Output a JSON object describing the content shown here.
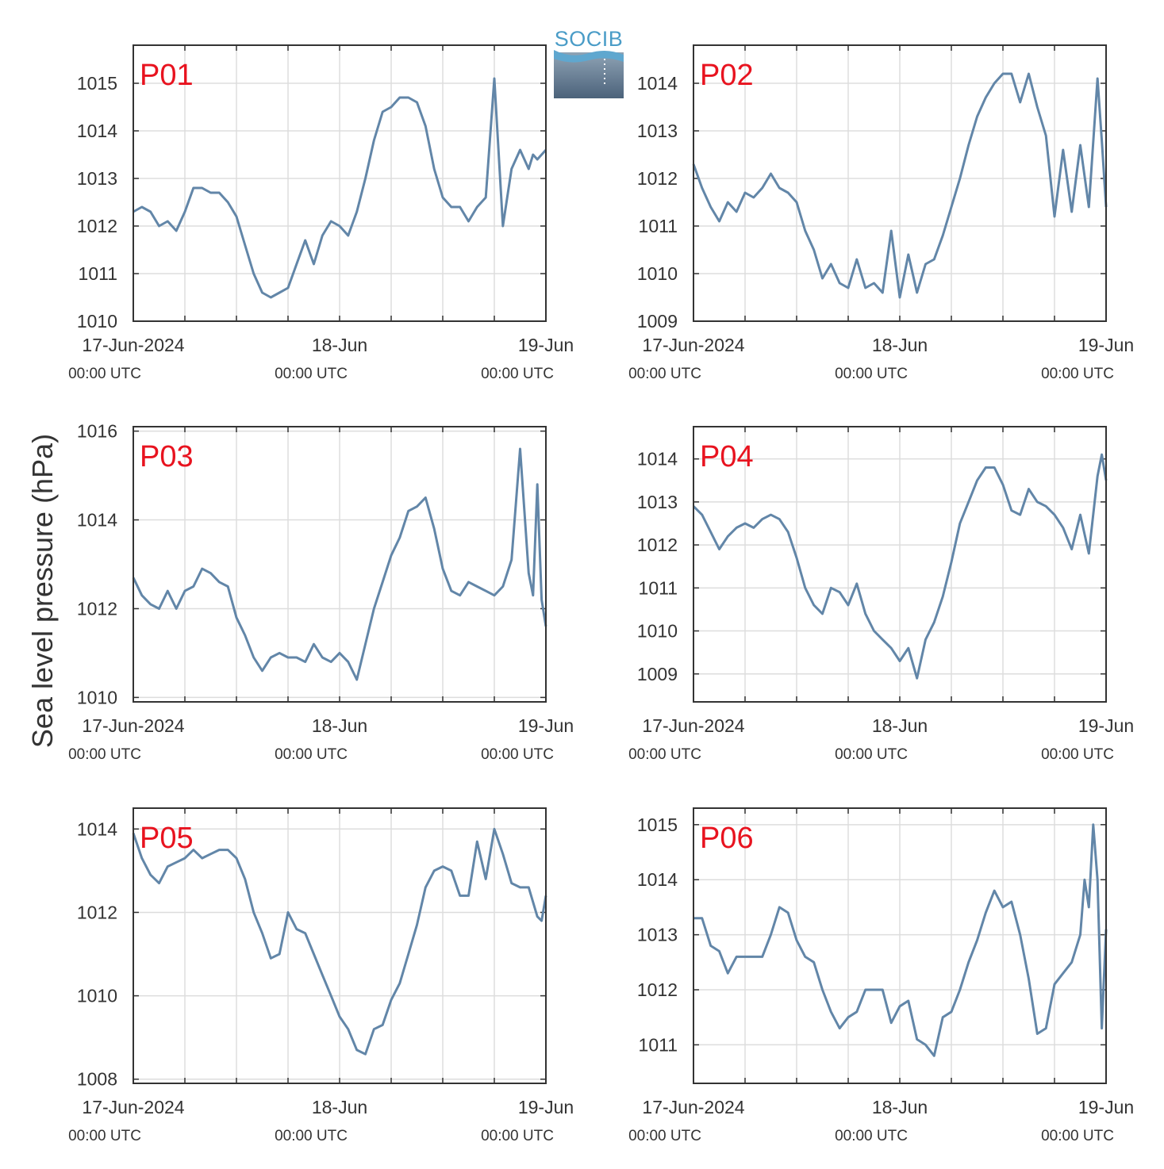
{
  "figure": {
    "ylabel": "Sea level pressure (hPa)",
    "logo_text": "SOCIB",
    "x_tick_labels": [
      "17-Jun-2024",
      "18-Jun",
      "19-Jun"
    ],
    "x_tick_sublabels": [
      "00:00 UTC",
      "00:00 UTC",
      "00:00 UTC"
    ]
  },
  "colors": {
    "line": "#6286a8",
    "panel_label": "#e8131f",
    "grid": "#dddddd",
    "axes": "#333333"
  },
  "chart_data": [
    {
      "type": "line",
      "panel_label": "P01",
      "xlabel": "",
      "ylabel": "",
      "xlim": [
        0,
        48
      ],
      "ylim": [
        1010,
        1015.8
      ],
      "yticks": [
        1010,
        1011,
        1012,
        1013,
        1014,
        1015
      ],
      "x_gridlines_hours": [
        6,
        12,
        18,
        24,
        30,
        36,
        42
      ],
      "x": [
        0,
        1,
        2,
        3,
        4,
        5,
        6,
        7,
        8,
        9,
        10,
        11,
        12,
        13,
        14,
        15,
        16,
        17,
        18,
        19,
        20,
        21,
        22,
        23,
        24,
        25,
        26,
        27,
        28,
        29,
        30,
        31,
        32,
        33,
        34,
        35,
        36,
        37,
        38,
        39,
        40,
        41,
        42,
        43,
        44,
        45,
        45.5,
        46,
        46.5,
        47,
        47.5,
        48
      ],
      "y": [
        1012.3,
        1012.4,
        1012.3,
        1012.0,
        1012.1,
        1011.9,
        1012.3,
        1012.8,
        1012.8,
        1012.7,
        1012.7,
        1012.5,
        1012.2,
        1011.6,
        1011.0,
        1010.6,
        1010.5,
        1010.6,
        1010.7,
        1011.2,
        1011.7,
        1011.2,
        1011.8,
        1012.1,
        1012.0,
        1011.8,
        1012.3,
        1013.0,
        1013.8,
        1014.4,
        1014.5,
        1014.7,
        1014.7,
        1014.6,
        1014.1,
        1013.2,
        1012.6,
        1012.4,
        1012.4,
        1012.1,
        1012.4,
        1012.6,
        1015.1,
        1012.0,
        1013.2,
        1013.6,
        1013.4,
        1013.2,
        1013.5,
        1013.4,
        1013.5,
        1013.6
      ]
    },
    {
      "type": "line",
      "panel_label": "P02",
      "xlabel": "",
      "ylabel": "",
      "xlim": [
        0,
        48
      ],
      "ylim": [
        1009,
        1014.8
      ],
      "yticks": [
        1009,
        1010,
        1011,
        1012,
        1013,
        1014
      ],
      "x_gridlines_hours": [
        6,
        12,
        18,
        24,
        30,
        36,
        42
      ],
      "x": [
        0,
        1,
        2,
        3,
        4,
        5,
        6,
        7,
        8,
        9,
        10,
        11,
        12,
        13,
        14,
        15,
        16,
        17,
        18,
        19,
        20,
        21,
        22,
        23,
        24,
        25,
        26,
        27,
        28,
        29,
        30,
        31,
        32,
        33,
        34,
        35,
        36,
        37,
        38,
        39,
        40,
        41,
        42,
        43,
        44,
        45,
        46,
        47,
        47.5,
        48
      ],
      "y": [
        1012.3,
        1011.8,
        1011.4,
        1011.1,
        1011.5,
        1011.3,
        1011.7,
        1011.6,
        1011.8,
        1012.1,
        1011.8,
        1011.7,
        1011.5,
        1010.9,
        1010.5,
        1009.9,
        1010.2,
        1009.8,
        1009.7,
        1010.3,
        1009.7,
        1009.8,
        1009.6,
        1010.9,
        1009.5,
        1010.4,
        1009.6,
        1010.2,
        1010.3,
        1010.8,
        1011.4,
        1012.0,
        1012.7,
        1013.3,
        1013.7,
        1014.0,
        1014.2,
        1014.2,
        1013.6,
        1014.2,
        1013.5,
        1012.9,
        1011.2,
        1012.6,
        1011.3,
        1012.7,
        1011.4,
        1014.1,
        1012.8,
        1011.4
      ]
    },
    {
      "type": "line",
      "panel_label": "P03",
      "xlabel": "",
      "ylabel": "",
      "xlim": [
        0,
        48
      ],
      "ylim": [
        1009.9,
        1016.1
      ],
      "yticks": [
        1010,
        1012,
        1014,
        1016
      ],
      "x_gridlines_hours": [
        6,
        12,
        18,
        24,
        30,
        36,
        42
      ],
      "x": [
        0,
        1,
        2,
        3,
        4,
        5,
        6,
        7,
        8,
        9,
        10,
        11,
        12,
        13,
        14,
        15,
        16,
        17,
        18,
        19,
        20,
        21,
        22,
        23,
        24,
        25,
        26,
        27,
        28,
        29,
        30,
        31,
        32,
        33,
        34,
        35,
        36,
        37,
        38,
        39,
        40,
        41,
        42,
        43,
        44,
        45,
        45.5,
        46,
        46.5,
        47,
        47.5,
        48
      ],
      "y": [
        1012.7,
        1012.3,
        1012.1,
        1012.0,
        1012.4,
        1012.0,
        1012.4,
        1012.5,
        1012.9,
        1012.8,
        1012.6,
        1012.5,
        1011.8,
        1011.4,
        1010.9,
        1010.6,
        1010.9,
        1011.0,
        1010.9,
        1010.9,
        1010.8,
        1011.2,
        1010.9,
        1010.8,
        1011.0,
        1010.8,
        1010.4,
        1011.2,
        1012.0,
        1012.6,
        1013.2,
        1013.6,
        1014.2,
        1014.3,
        1014.5,
        1013.8,
        1012.9,
        1012.4,
        1012.3,
        1012.6,
        1012.5,
        1012.4,
        1012.3,
        1012.5,
        1013.1,
        1015.6,
        1014.2,
        1012.8,
        1012.3,
        1014.8,
        1012.2,
        1011.6
      ]
    },
    {
      "type": "line",
      "panel_label": "P04",
      "xlabel": "",
      "ylabel": "",
      "xlim": [
        0,
        48
      ],
      "ylim": [
        1008.35,
        1014.75
      ],
      "yticks": [
        1009,
        1010,
        1011,
        1012,
        1013,
        1014
      ],
      "x_gridlines_hours": [
        6,
        12,
        18,
        24,
        30,
        36,
        42
      ],
      "x": [
        0,
        1,
        2,
        3,
        4,
        5,
        6,
        7,
        8,
        9,
        10,
        11,
        12,
        13,
        14,
        15,
        16,
        17,
        18,
        19,
        20,
        21,
        22,
        23,
        24,
        25,
        26,
        27,
        28,
        29,
        30,
        31,
        32,
        33,
        34,
        35,
        36,
        37,
        38,
        39,
        40,
        41,
        42,
        43,
        44,
        45,
        46,
        47,
        47.5,
        48
      ],
      "y": [
        1012.9,
        1012.7,
        1012.3,
        1011.9,
        1012.2,
        1012.4,
        1012.5,
        1012.4,
        1012.6,
        1012.7,
        1012.6,
        1012.3,
        1011.7,
        1011.0,
        1010.6,
        1010.4,
        1011.0,
        1010.9,
        1010.6,
        1011.1,
        1010.4,
        1010.0,
        1009.8,
        1009.6,
        1009.3,
        1009.6,
        1008.9,
        1009.8,
        1010.2,
        1010.8,
        1011.6,
        1012.5,
        1013.0,
        1013.5,
        1013.8,
        1013.8,
        1013.4,
        1012.8,
        1012.7,
        1013.3,
        1013.0,
        1012.9,
        1012.7,
        1012.4,
        1011.9,
        1012.7,
        1011.8,
        1013.6,
        1014.1,
        1013.5
      ]
    },
    {
      "type": "line",
      "panel_label": "P05",
      "xlabel": "",
      "ylabel": "",
      "xlim": [
        0,
        48
      ],
      "ylim": [
        1007.9,
        1014.5
      ],
      "yticks": [
        1008,
        1010,
        1012,
        1014
      ],
      "x_gridlines_hours": [
        6,
        12,
        18,
        24,
        30,
        36,
        42
      ],
      "x": [
        0,
        1,
        2,
        3,
        4,
        5,
        6,
        7,
        8,
        9,
        10,
        11,
        12,
        13,
        14,
        15,
        16,
        17,
        18,
        19,
        20,
        21,
        22,
        23,
        24,
        25,
        26,
        27,
        28,
        29,
        30,
        31,
        32,
        33,
        34,
        35,
        36,
        37,
        38,
        39,
        40,
        41,
        42,
        43,
        44,
        45,
        46,
        47,
        47.5,
        48
      ],
      "y": [
        1013.9,
        1013.3,
        1012.9,
        1012.7,
        1013.1,
        1013.2,
        1013.3,
        1013.5,
        1013.3,
        1013.4,
        1013.5,
        1013.5,
        1013.3,
        1012.8,
        1012.0,
        1011.5,
        1010.9,
        1011.0,
        1012.0,
        1011.6,
        1011.5,
        1011.0,
        1010.5,
        1010.0,
        1009.5,
        1009.2,
        1008.7,
        1008.6,
        1009.2,
        1009.3,
        1009.9,
        1010.3,
        1011.0,
        1011.7,
        1012.6,
        1013.0,
        1013.1,
        1013.0,
        1012.4,
        1012.4,
        1013.7,
        1012.8,
        1014.0,
        1013.4,
        1012.7,
        1012.6,
        1012.6,
        1011.9,
        1011.8,
        1012.4
      ]
    },
    {
      "type": "line",
      "panel_label": "P06",
      "xlabel": "",
      "ylabel": "",
      "xlim": [
        0,
        48
      ],
      "ylim": [
        1010.3,
        1015.3
      ],
      "yticks": [
        1011,
        1012,
        1013,
        1014,
        1015
      ],
      "x_gridlines_hours": [
        6,
        12,
        18,
        24,
        30,
        36,
        42
      ],
      "x": [
        0,
        1,
        2,
        3,
        4,
        5,
        6,
        7,
        8,
        9,
        10,
        11,
        12,
        13,
        14,
        15,
        16,
        17,
        18,
        19,
        20,
        21,
        22,
        23,
        24,
        25,
        26,
        27,
        28,
        29,
        30,
        31,
        32,
        33,
        34,
        35,
        36,
        37,
        38,
        39,
        40,
        41,
        42,
        43,
        44,
        45,
        45.5,
        46,
        46.5,
        47,
        47.5,
        48
      ],
      "y": [
        1013.3,
        1013.3,
        1012.8,
        1012.7,
        1012.3,
        1012.6,
        1012.6,
        1012.6,
        1012.6,
        1013.0,
        1013.5,
        1013.4,
        1012.9,
        1012.6,
        1012.5,
        1012.0,
        1011.6,
        1011.3,
        1011.5,
        1011.6,
        1012.0,
        1012.0,
        1012.0,
        1011.4,
        1011.7,
        1011.8,
        1011.1,
        1011.0,
        1010.8,
        1011.5,
        1011.6,
        1012.0,
        1012.5,
        1012.9,
        1013.4,
        1013.8,
        1013.5,
        1013.6,
        1013.0,
        1012.2,
        1011.2,
        1011.3,
        1012.1,
        1012.3,
        1012.5,
        1013.0,
        1014.0,
        1013.5,
        1015.0,
        1014.0,
        1011.3,
        1013.1
      ]
    }
  ]
}
